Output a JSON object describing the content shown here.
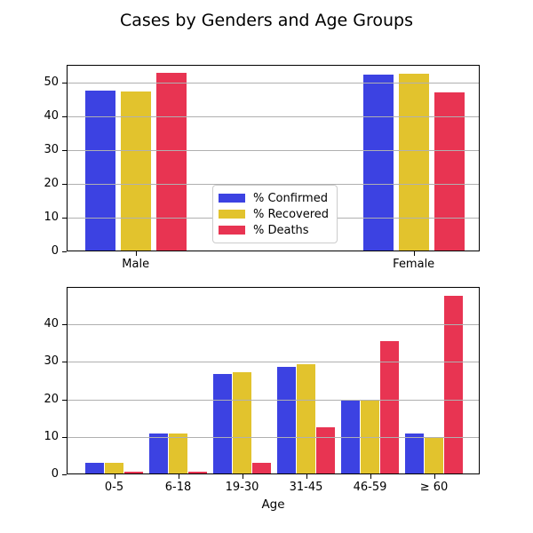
{
  "title": "Cases by Genders and Age Groups",
  "colors": {
    "confirmed": "#3C42E2",
    "recovered": "#E2C32D",
    "deaths": "#E83452",
    "grid": "#B0B0B0",
    "axis": "#000000",
    "background": "#FFFFFF"
  },
  "chart_data": [
    {
      "type": "bar",
      "name": "cases-by-gender",
      "categories": [
        "Male",
        "Female"
      ],
      "series": [
        {
          "name": "% Confirmed",
          "color": "#3C42E2",
          "values": [
            47.7,
            52.3
          ]
        },
        {
          "name": "% Recovered",
          "color": "#E2C32D",
          "values": [
            47.4,
            52.6
          ]
        },
        {
          "name": "% Deaths",
          "color": "#E83452",
          "values": [
            52.9,
            47.1
          ]
        }
      ],
      "xlabel": "",
      "ylabel": "",
      "ylim": [
        0,
        55.3
      ],
      "yticks": [
        0,
        10,
        20,
        30,
        40,
        50
      ],
      "grid": true,
      "grid_above_bars": true,
      "legend": {
        "visible": true,
        "position": "center"
      }
    },
    {
      "type": "bar",
      "name": "cases-by-age-group",
      "categories": [
        "0-5",
        "6-18",
        "19-30",
        "31-45",
        "46-59",
        "≥ 60"
      ],
      "series": [
        {
          "name": "% Confirmed",
          "color": "#3C42E2",
          "values": [
            3.2,
            10.8,
            26.7,
            28.7,
            19.9,
            10.9
          ]
        },
        {
          "name": "% Recovered",
          "color": "#E2C32D",
          "values": [
            3.2,
            11.0,
            27.2,
            29.4,
            19.6,
            10.0
          ]
        },
        {
          "name": "% Deaths",
          "color": "#E83452",
          "values": [
            0.8,
            0.8,
            3.2,
            12.6,
            35.5,
            47.6
          ]
        }
      ],
      "xlabel": "Age",
      "ylabel": "",
      "ylim": [
        0,
        50.0
      ],
      "yticks": [
        0,
        10,
        20,
        30,
        40
      ],
      "grid": true,
      "grid_above_bars": true,
      "legend": {
        "visible": false
      }
    }
  ]
}
